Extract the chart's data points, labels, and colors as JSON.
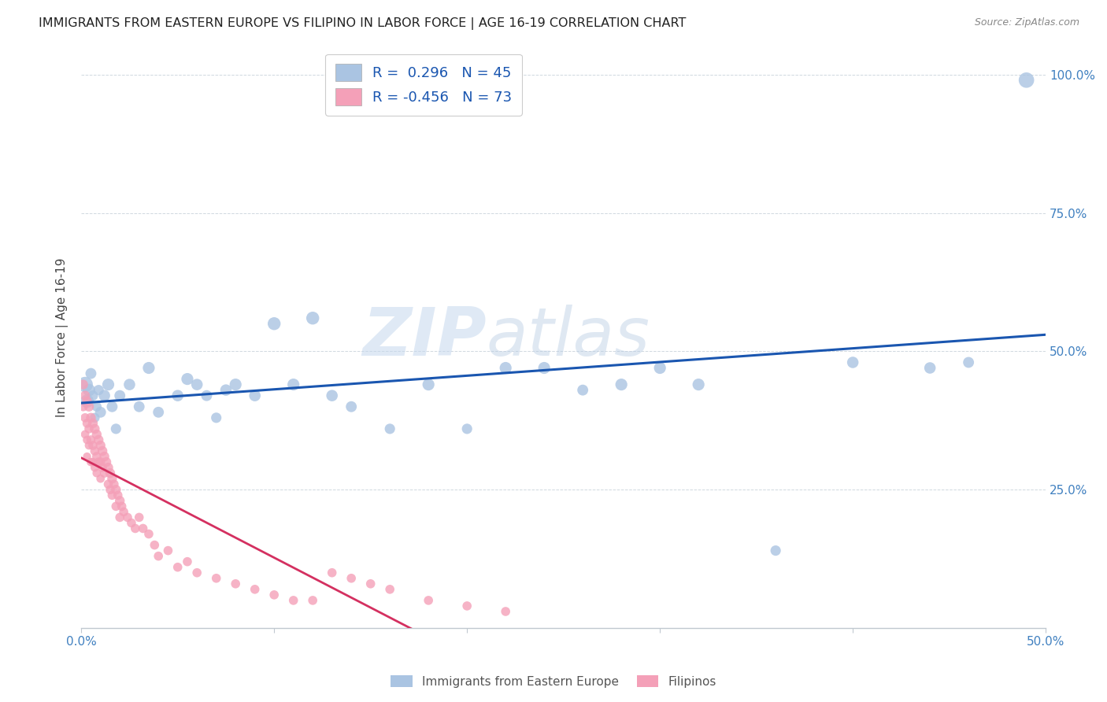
{
  "title": "IMMIGRANTS FROM EASTERN EUROPE VS FILIPINO IN LABOR FORCE | AGE 16-19 CORRELATION CHART",
  "source": "Source: ZipAtlas.com",
  "ylabel": "In Labor Force | Age 16-19",
  "xlim": [
    0.0,
    0.5
  ],
  "ylim": [
    0.0,
    1.05
  ],
  "ytick_positions": [
    0.0,
    0.25,
    0.5,
    0.75,
    1.0
  ],
  "ytick_labels": [
    "",
    "25.0%",
    "50.0%",
    "75.0%",
    "100.0%"
  ],
  "R_eastern": 0.296,
  "N_eastern": 45,
  "R_filipino": -0.456,
  "N_filipino": 73,
  "eastern_color": "#aac4e2",
  "eastern_line_color": "#1a56b0",
  "filipino_color": "#f4a0b8",
  "filipino_line_color": "#d43060",
  "watermark_zip": "ZIP",
  "watermark_atlas": "atlas",
  "legend_label_eastern": "Immigrants from Eastern Europe",
  "legend_label_filipino": "Filipinos",
  "eastern_europe_x": [
    0.002,
    0.003,
    0.004,
    0.005,
    0.006,
    0.007,
    0.008,
    0.009,
    0.01,
    0.012,
    0.014,
    0.016,
    0.018,
    0.02,
    0.025,
    0.03,
    0.035,
    0.04,
    0.05,
    0.055,
    0.06,
    0.065,
    0.07,
    0.075,
    0.08,
    0.09,
    0.1,
    0.11,
    0.12,
    0.13,
    0.14,
    0.16,
    0.18,
    0.2,
    0.22,
    0.24,
    0.26,
    0.28,
    0.3,
    0.32,
    0.36,
    0.4,
    0.44,
    0.46,
    0.49
  ],
  "eastern_europe_y": [
    0.44,
    0.41,
    0.43,
    0.46,
    0.42,
    0.38,
    0.4,
    0.43,
    0.39,
    0.42,
    0.44,
    0.4,
    0.36,
    0.42,
    0.44,
    0.4,
    0.47,
    0.39,
    0.42,
    0.45,
    0.44,
    0.42,
    0.38,
    0.43,
    0.44,
    0.42,
    0.55,
    0.44,
    0.56,
    0.42,
    0.4,
    0.36,
    0.44,
    0.36,
    0.47,
    0.47,
    0.43,
    0.44,
    0.47,
    0.44,
    0.14,
    0.48,
    0.47,
    0.48,
    0.99
  ],
  "eastern_europe_size": [
    200,
    150,
    130,
    100,
    90,
    80,
    80,
    90,
    100,
    110,
    120,
    100,
    90,
    100,
    110,
    100,
    120,
    100,
    110,
    120,
    110,
    100,
    90,
    110,
    120,
    110,
    140,
    120,
    140,
    110,
    100,
    90,
    120,
    90,
    120,
    120,
    100,
    120,
    120,
    120,
    90,
    110,
    110,
    100,
    200
  ],
  "filipino_x": [
    0.001,
    0.001,
    0.002,
    0.002,
    0.002,
    0.003,
    0.003,
    0.003,
    0.003,
    0.004,
    0.004,
    0.004,
    0.005,
    0.005,
    0.005,
    0.006,
    0.006,
    0.006,
    0.007,
    0.007,
    0.007,
    0.008,
    0.008,
    0.008,
    0.009,
    0.009,
    0.01,
    0.01,
    0.01,
    0.011,
    0.011,
    0.012,
    0.012,
    0.013,
    0.014,
    0.014,
    0.015,
    0.015,
    0.016,
    0.016,
    0.017,
    0.018,
    0.018,
    0.019,
    0.02,
    0.02,
    0.021,
    0.022,
    0.024,
    0.026,
    0.028,
    0.03,
    0.032,
    0.035,
    0.038,
    0.04,
    0.045,
    0.05,
    0.055,
    0.06,
    0.07,
    0.08,
    0.09,
    0.1,
    0.11,
    0.12,
    0.13,
    0.14,
    0.15,
    0.16,
    0.18,
    0.2,
    0.22
  ],
  "filipino_y": [
    0.44,
    0.4,
    0.42,
    0.38,
    0.35,
    0.41,
    0.37,
    0.34,
    0.31,
    0.4,
    0.36,
    0.33,
    0.38,
    0.34,
    0.3,
    0.37,
    0.33,
    0.3,
    0.36,
    0.32,
    0.29,
    0.35,
    0.31,
    0.28,
    0.34,
    0.3,
    0.33,
    0.3,
    0.27,
    0.32,
    0.29,
    0.31,
    0.28,
    0.3,
    0.29,
    0.26,
    0.28,
    0.25,
    0.27,
    0.24,
    0.26,
    0.25,
    0.22,
    0.24,
    0.23,
    0.2,
    0.22,
    0.21,
    0.2,
    0.19,
    0.18,
    0.2,
    0.18,
    0.17,
    0.15,
    0.13,
    0.14,
    0.11,
    0.12,
    0.1,
    0.09,
    0.08,
    0.07,
    0.06,
    0.05,
    0.05,
    0.1,
    0.09,
    0.08,
    0.07,
    0.05,
    0.04,
    0.03
  ],
  "filipino_size": [
    80,
    70,
    80,
    70,
    60,
    80,
    70,
    60,
    55,
    80,
    70,
    60,
    80,
    70,
    60,
    80,
    70,
    60,
    80,
    70,
    60,
    80,
    70,
    60,
    80,
    70,
    80,
    70,
    60,
    80,
    70,
    80,
    70,
    80,
    80,
    70,
    80,
    70,
    80,
    70,
    70,
    80,
    70,
    70,
    80,
    70,
    70,
    70,
    70,
    70,
    70,
    70,
    70,
    70,
    70,
    70,
    70,
    70,
    70,
    70,
    70,
    70,
    70,
    70,
    70,
    70,
    70,
    70,
    70,
    70,
    70,
    70,
    70
  ]
}
